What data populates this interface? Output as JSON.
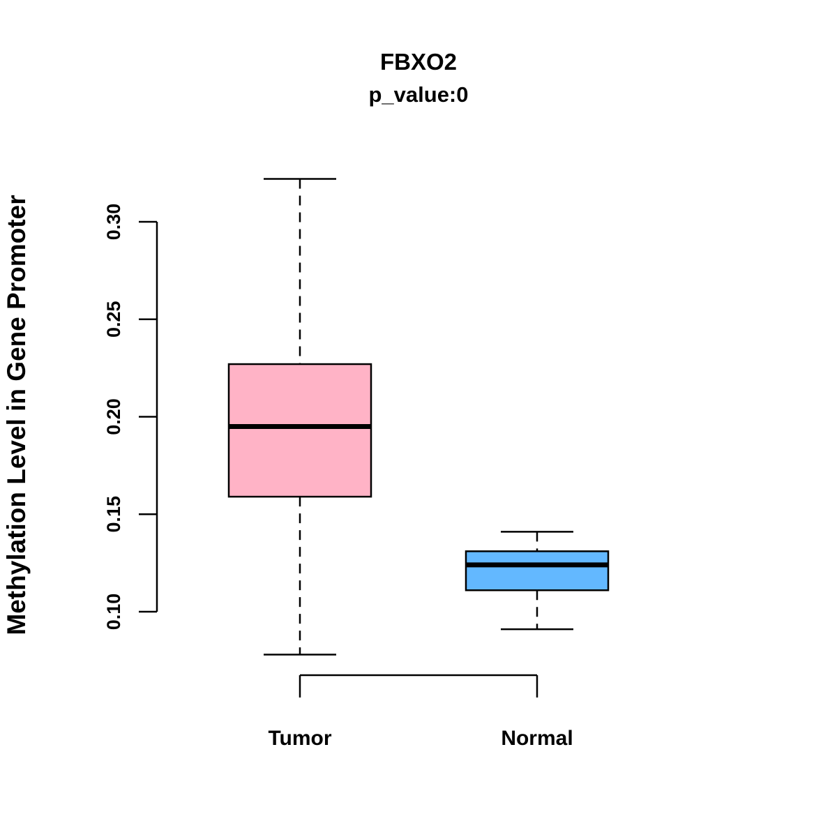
{
  "chart_data": {
    "type": "boxplot",
    "title": "FBXO2",
    "subtitle": "p_value:0",
    "ylabel": "Methylation Level in Gene Promoter",
    "xlabel": "",
    "categories": [
      "Tumor",
      "Normal"
    ],
    "ytick_values": [
      0.1,
      0.15,
      0.2,
      0.25,
      0.3
    ],
    "ytick_labels": [
      "0.10",
      "0.15",
      "0.20",
      "0.25",
      "0.30"
    ],
    "ylim": [
      0.078,
      0.322
    ],
    "grid": false,
    "legend": "none",
    "axis_color": "#000000",
    "boxes": [
      {
        "category": "Tumor",
        "color": "#FFB3C6",
        "whisker_low": 0.078,
        "q1": 0.159,
        "median": 0.195,
        "q3": 0.227,
        "whisker_high": 0.322
      },
      {
        "category": "Normal",
        "color": "#63B8FF",
        "whisker_low": 0.091,
        "q1": 0.111,
        "median": 0.124,
        "q3": 0.131,
        "whisker_high": 0.141
      }
    ]
  }
}
